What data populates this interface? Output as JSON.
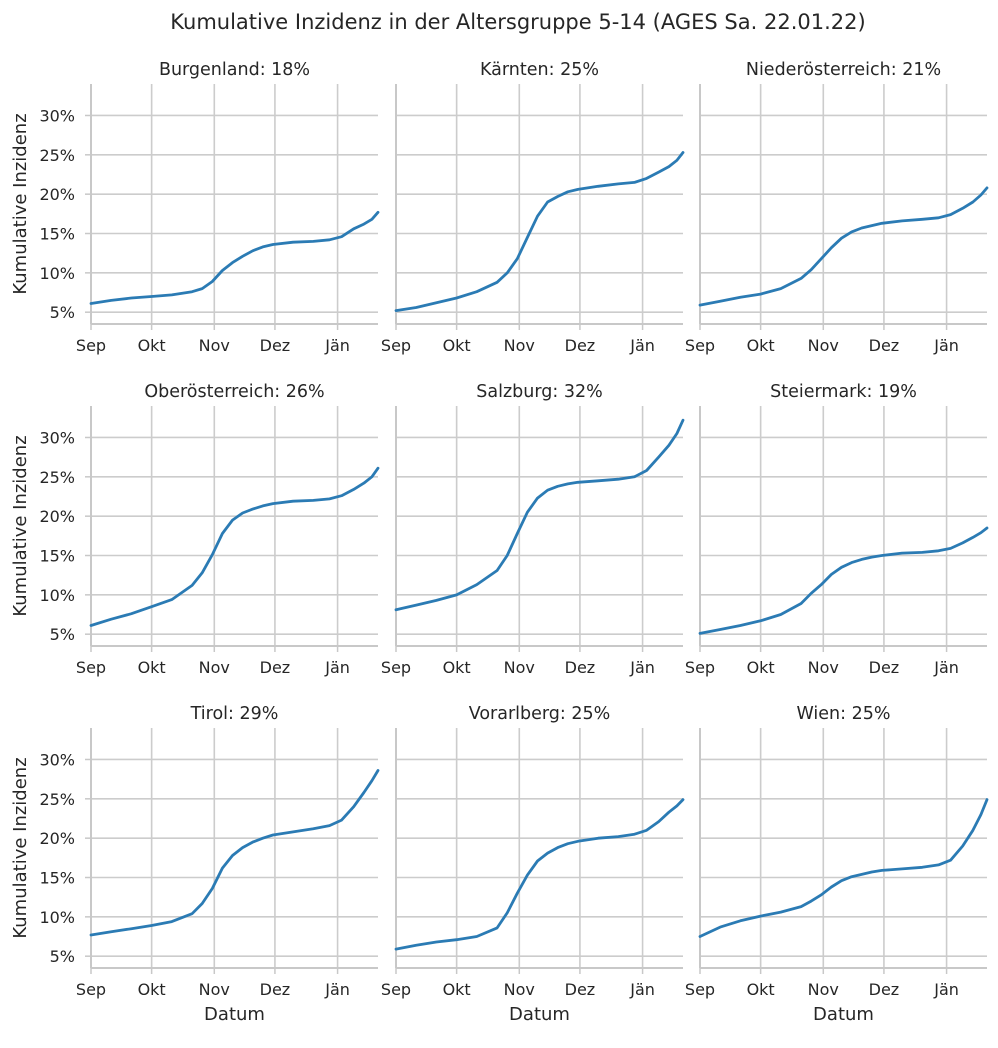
{
  "suptitle": "Kumulative Inzidenz in der Altersgruppe 5-14 (AGES Sa. 22.01.22)",
  "colors": {
    "line": "#2b7bb4",
    "grid": "#cccccc",
    "spine": "#c8c8c8",
    "text": "#262626"
  },
  "chart_data": [
    {
      "type": "line",
      "title": "Burgenland: 18%",
      "xlabel": "",
      "ylabel": "Kumulative Inzidenz",
      "x_ticks": [
        "Sep",
        "Okt",
        "Nov",
        "Dez",
        "Jän"
      ],
      "y_ticks": [
        "5%",
        "10%",
        "15%",
        "20%",
        "25%",
        "30%"
      ],
      "x": [
        0,
        10,
        20,
        30,
        40,
        50,
        55,
        60,
        65,
        70,
        75,
        80,
        85,
        90,
        100,
        110,
        118,
        124,
        130,
        135,
        139,
        142
      ],
      "y": [
        6.1,
        6.5,
        6.8,
        7.0,
        7.2,
        7.6,
        8.0,
        8.9,
        10.3,
        11.3,
        12.1,
        12.8,
        13.3,
        13.6,
        13.9,
        14.0,
        14.2,
        14.6,
        15.6,
        16.2,
        16.8,
        17.7
      ]
    },
    {
      "type": "line",
      "title": "Kärnten: 25%",
      "xlabel": "",
      "ylabel": "",
      "x_ticks": [
        "Sep",
        "Okt",
        "Nov",
        "Dez",
        "Jän"
      ],
      "y_ticks": [
        "5%",
        "10%",
        "15%",
        "20%",
        "25%",
        "30%"
      ],
      "x": [
        0,
        10,
        20,
        30,
        40,
        50,
        55,
        60,
        65,
        70,
        75,
        80,
        85,
        90,
        100,
        110,
        118,
        124,
        130,
        135,
        139,
        142
      ],
      "y": [
        5.2,
        5.6,
        6.2,
        6.8,
        7.6,
        8.8,
        10.0,
        11.8,
        14.5,
        17.2,
        19.0,
        19.7,
        20.3,
        20.6,
        21.0,
        21.3,
        21.5,
        22.0,
        22.8,
        23.5,
        24.3,
        25.3
      ]
    },
    {
      "type": "line",
      "title": "Niederösterreich: 21%",
      "xlabel": "",
      "ylabel": "",
      "x_ticks": [
        "Sep",
        "Okt",
        "Nov",
        "Dez",
        "Jän"
      ],
      "y_ticks": [
        "5%",
        "10%",
        "15%",
        "20%",
        "25%",
        "30%"
      ],
      "x": [
        0,
        10,
        20,
        30,
        40,
        50,
        55,
        60,
        65,
        70,
        75,
        80,
        85,
        90,
        100,
        110,
        118,
        124,
        130,
        135,
        139,
        142
      ],
      "y": [
        5.9,
        6.4,
        6.9,
        7.3,
        8.0,
        9.3,
        10.4,
        11.8,
        13.2,
        14.4,
        15.2,
        15.7,
        16.0,
        16.3,
        16.6,
        16.8,
        17.0,
        17.4,
        18.2,
        19.0,
        19.9,
        20.8
      ]
    },
    {
      "type": "line",
      "title": "Oberösterreich: 26%",
      "xlabel": "",
      "ylabel": "Kumulative Inzidenz",
      "x_ticks": [
        "Sep",
        "Okt",
        "Nov",
        "Dez",
        "Jän"
      ],
      "y_ticks": [
        "5%",
        "10%",
        "15%",
        "20%",
        "25%",
        "30%"
      ],
      "x": [
        0,
        10,
        20,
        30,
        40,
        50,
        55,
        60,
        65,
        70,
        75,
        80,
        85,
        90,
        100,
        110,
        118,
        124,
        130,
        135,
        139,
        142
      ],
      "y": [
        6.1,
        6.9,
        7.6,
        8.5,
        9.4,
        11.2,
        12.8,
        15.1,
        17.8,
        19.5,
        20.4,
        20.9,
        21.3,
        21.6,
        21.9,
        22.0,
        22.2,
        22.6,
        23.4,
        24.2,
        25.0,
        26.1
      ]
    },
    {
      "type": "line",
      "title": "Salzburg: 32%",
      "xlabel": "",
      "ylabel": "",
      "x_ticks": [
        "Sep",
        "Okt",
        "Nov",
        "Dez",
        "Jän"
      ],
      "y_ticks": [
        "5%",
        "10%",
        "15%",
        "20%",
        "25%",
        "30%"
      ],
      "x": [
        0,
        10,
        20,
        30,
        40,
        50,
        55,
        60,
        65,
        70,
        75,
        80,
        85,
        90,
        100,
        110,
        118,
        124,
        130,
        135,
        139,
        142
      ],
      "y": [
        8.1,
        8.7,
        9.3,
        10.0,
        11.3,
        13.1,
        15.0,
        17.8,
        20.5,
        22.3,
        23.3,
        23.8,
        24.1,
        24.3,
        24.5,
        24.7,
        25.0,
        25.8,
        27.5,
        29.0,
        30.5,
        32.2
      ]
    },
    {
      "type": "line",
      "title": "Steiermark: 19%",
      "xlabel": "",
      "ylabel": "",
      "x_ticks": [
        "Sep",
        "Okt",
        "Nov",
        "Dez",
        "Jän"
      ],
      "y_ticks": [
        "5%",
        "10%",
        "15%",
        "20%",
        "25%",
        "30%"
      ],
      "x": [
        0,
        10,
        20,
        30,
        40,
        50,
        55,
        60,
        65,
        70,
        75,
        80,
        85,
        90,
        100,
        110,
        118,
        124,
        130,
        135,
        139,
        142
      ],
      "y": [
        5.1,
        5.6,
        6.1,
        6.7,
        7.5,
        8.9,
        10.2,
        11.3,
        12.6,
        13.5,
        14.1,
        14.5,
        14.8,
        15.0,
        15.3,
        15.4,
        15.6,
        15.9,
        16.6,
        17.3,
        17.9,
        18.5
      ]
    },
    {
      "type": "line",
      "title": "Tirol: 29%",
      "xlabel": "Datum",
      "ylabel": "Kumulative Inzidenz",
      "x_ticks": [
        "Sep",
        "Okt",
        "Nov",
        "Dez",
        "Jän"
      ],
      "y_ticks": [
        "5%",
        "10%",
        "15%",
        "20%",
        "25%",
        "30%"
      ],
      "x": [
        0,
        10,
        20,
        30,
        40,
        50,
        55,
        60,
        65,
        70,
        75,
        80,
        85,
        90,
        100,
        110,
        118,
        124,
        130,
        135,
        139,
        142
      ],
      "y": [
        7.7,
        8.1,
        8.5,
        8.9,
        9.4,
        10.4,
        11.7,
        13.6,
        16.2,
        17.8,
        18.8,
        19.5,
        20.0,
        20.4,
        20.8,
        21.2,
        21.6,
        22.3,
        24.0,
        25.8,
        27.3,
        28.6
      ]
    },
    {
      "type": "line",
      "title": "Vorarlberg: 25%",
      "xlabel": "Datum",
      "ylabel": "",
      "x_ticks": [
        "Sep",
        "Okt",
        "Nov",
        "Dez",
        "Jän"
      ],
      "y_ticks": [
        "5%",
        "10%",
        "15%",
        "20%",
        "25%",
        "30%"
      ],
      "x": [
        0,
        10,
        20,
        30,
        40,
        50,
        55,
        60,
        65,
        70,
        75,
        80,
        85,
        90,
        100,
        110,
        118,
        124,
        130,
        135,
        139,
        142
      ],
      "y": [
        5.9,
        6.4,
        6.8,
        7.1,
        7.5,
        8.6,
        10.5,
        13.0,
        15.3,
        17.1,
        18.1,
        18.8,
        19.3,
        19.6,
        20.0,
        20.2,
        20.5,
        21.0,
        22.1,
        23.3,
        24.1,
        24.9
      ]
    },
    {
      "type": "line",
      "title": "Wien: 25%",
      "xlabel": "Datum",
      "ylabel": "",
      "x_ticks": [
        "Sep",
        "Okt",
        "Nov",
        "Dez",
        "Jän"
      ],
      "y_ticks": [
        "5%",
        "10%",
        "15%",
        "20%",
        "25%",
        "30%"
      ],
      "x": [
        0,
        10,
        20,
        30,
        40,
        50,
        55,
        60,
        65,
        70,
        75,
        80,
        85,
        90,
        100,
        110,
        118,
        124,
        130,
        135,
        139,
        142
      ],
      "y": [
        7.5,
        8.7,
        9.5,
        10.1,
        10.6,
        11.3,
        12.0,
        12.8,
        13.8,
        14.6,
        15.1,
        15.4,
        15.7,
        15.9,
        16.1,
        16.3,
        16.6,
        17.2,
        19.0,
        21.0,
        23.0,
        24.9
      ]
    }
  ]
}
